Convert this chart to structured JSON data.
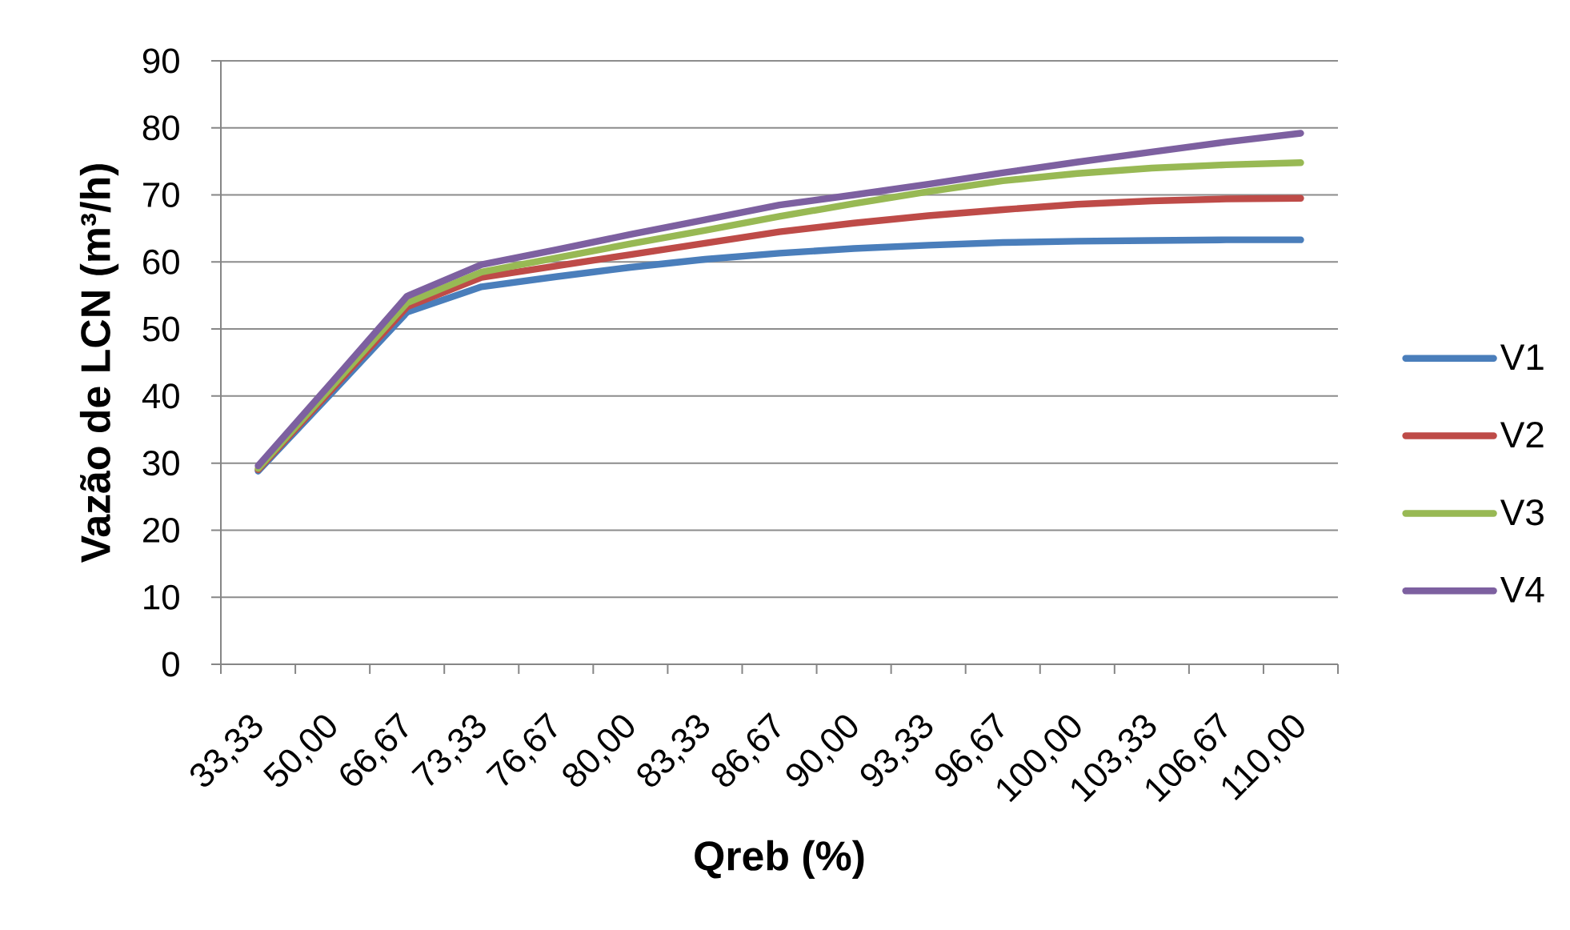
{
  "chart_data": {
    "type": "line",
    "xlabel": "Qreb (%)",
    "ylabel": "Vazão de LCN (m³/h)",
    "categories": [
      "33,33",
      "50,00",
      "66,67",
      "73,33",
      "76,67",
      "80,00",
      "83,33",
      "86,67",
      "90,00",
      "93,33",
      "96,67",
      "100,00",
      "103,33",
      "106,67",
      "110,00"
    ],
    "series": [
      {
        "name": "V1",
        "color": "#4a7ebb",
        "values": [
          28.8,
          40.6,
          52.5,
          56.3,
          57.8,
          59.2,
          60.4,
          61.3,
          62.0,
          62.5,
          62.9,
          63.1,
          63.2,
          63.3,
          63.3
        ]
      },
      {
        "name": "V2",
        "color": "#be4b48",
        "values": [
          29.0,
          41.1,
          53.3,
          57.7,
          59.4,
          61.1,
          62.8,
          64.5,
          65.8,
          66.9,
          67.8,
          68.6,
          69.1,
          69.4,
          69.5
        ]
      },
      {
        "name": "V3",
        "color": "#98b954",
        "values": [
          29.2,
          41.5,
          53.9,
          58.5,
          60.6,
          62.7,
          64.7,
          66.8,
          68.7,
          70.5,
          72.1,
          73.2,
          74.0,
          74.5,
          74.8
        ]
      },
      {
        "name": "V4",
        "color": "#7d60a0",
        "values": [
          29.6,
          42.2,
          54.9,
          59.6,
          61.8,
          64.1,
          66.3,
          68.5,
          70.0,
          71.6,
          73.3,
          74.9,
          76.4,
          77.9,
          79.2
        ]
      }
    ],
    "ylim": [
      0,
      90
    ],
    "yticks": [
      0,
      10,
      20,
      30,
      40,
      50,
      60,
      70,
      80,
      90
    ],
    "grid": "y",
    "legend": "right",
    "marker": "none",
    "line_style": "solid"
  }
}
